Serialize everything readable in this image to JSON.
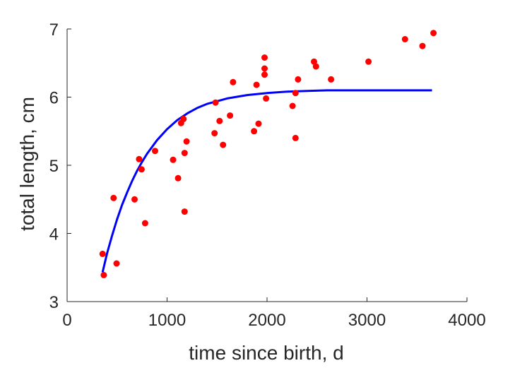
{
  "chart_data": {
    "type": "scatter",
    "xlabel": "time since birth, d",
    "ylabel": "total length, cm",
    "xlim": [
      0,
      4000
    ],
    "ylim": [
      3,
      7
    ],
    "xticks": [
      0,
      1000,
      2000,
      3000,
      4000
    ],
    "yticks": [
      3,
      4,
      5,
      6,
      7
    ],
    "xtick_labels": [
      "0",
      "1000",
      "2000",
      "3000",
      "4000"
    ],
    "ytick_labels": [
      "3",
      "4",
      "5",
      "6",
      "7"
    ],
    "grid": false,
    "legend": "none",
    "colors": {
      "points": "#ff0000",
      "curve": "#0000ff",
      "axis": "#262626"
    },
    "series": [
      {
        "kind": "points",
        "x": [
          355,
          367,
          465,
          495,
          675,
          720,
          745,
          780,
          880,
          1060,
          1110,
          1140,
          1165,
          1175,
          1175,
          1195,
          1475,
          1485,
          1525,
          1560,
          1630,
          1660,
          1870,
          1895,
          1915,
          1975,
          1975,
          1975,
          1990,
          2255,
          2285,
          2285,
          2310,
          2470,
          2490,
          2640,
          3015,
          3380,
          3555,
          3665
        ],
        "y": [
          3.7,
          3.39,
          4.52,
          3.56,
          4.5,
          5.09,
          4.94,
          4.15,
          5.21,
          5.08,
          4.81,
          5.62,
          5.68,
          5.18,
          4.32,
          5.35,
          5.47,
          5.92,
          5.65,
          5.3,
          5.73,
          6.22,
          5.5,
          6.18,
          5.61,
          6.58,
          6.42,
          6.33,
          5.98,
          5.87,
          6.06,
          5.4,
          6.26,
          6.52,
          6.45,
          6.26,
          6.52,
          6.85,
          6.75,
          6.94
        ]
      },
      {
        "kind": "fit",
        "x": [
          355,
          400,
          450,
          500,
          550,
          600,
          650,
          700,
          750,
          800,
          900,
          1000,
          1100,
          1200,
          1300,
          1400,
          1500,
          1600,
          1800,
          2000,
          2200,
          2400,
          2600,
          2800,
          3000,
          3200,
          3400,
          3650
        ],
        "y": [
          3.43,
          3.71,
          3.97,
          4.21,
          4.42,
          4.6,
          4.77,
          4.92,
          5.05,
          5.17,
          5.37,
          5.53,
          5.66,
          5.76,
          5.84,
          5.9,
          5.94,
          5.98,
          6.03,
          6.06,
          6.08,
          6.09,
          6.1,
          6.1,
          6.1,
          6.1,
          6.1,
          6.1
        ]
      }
    ]
  }
}
